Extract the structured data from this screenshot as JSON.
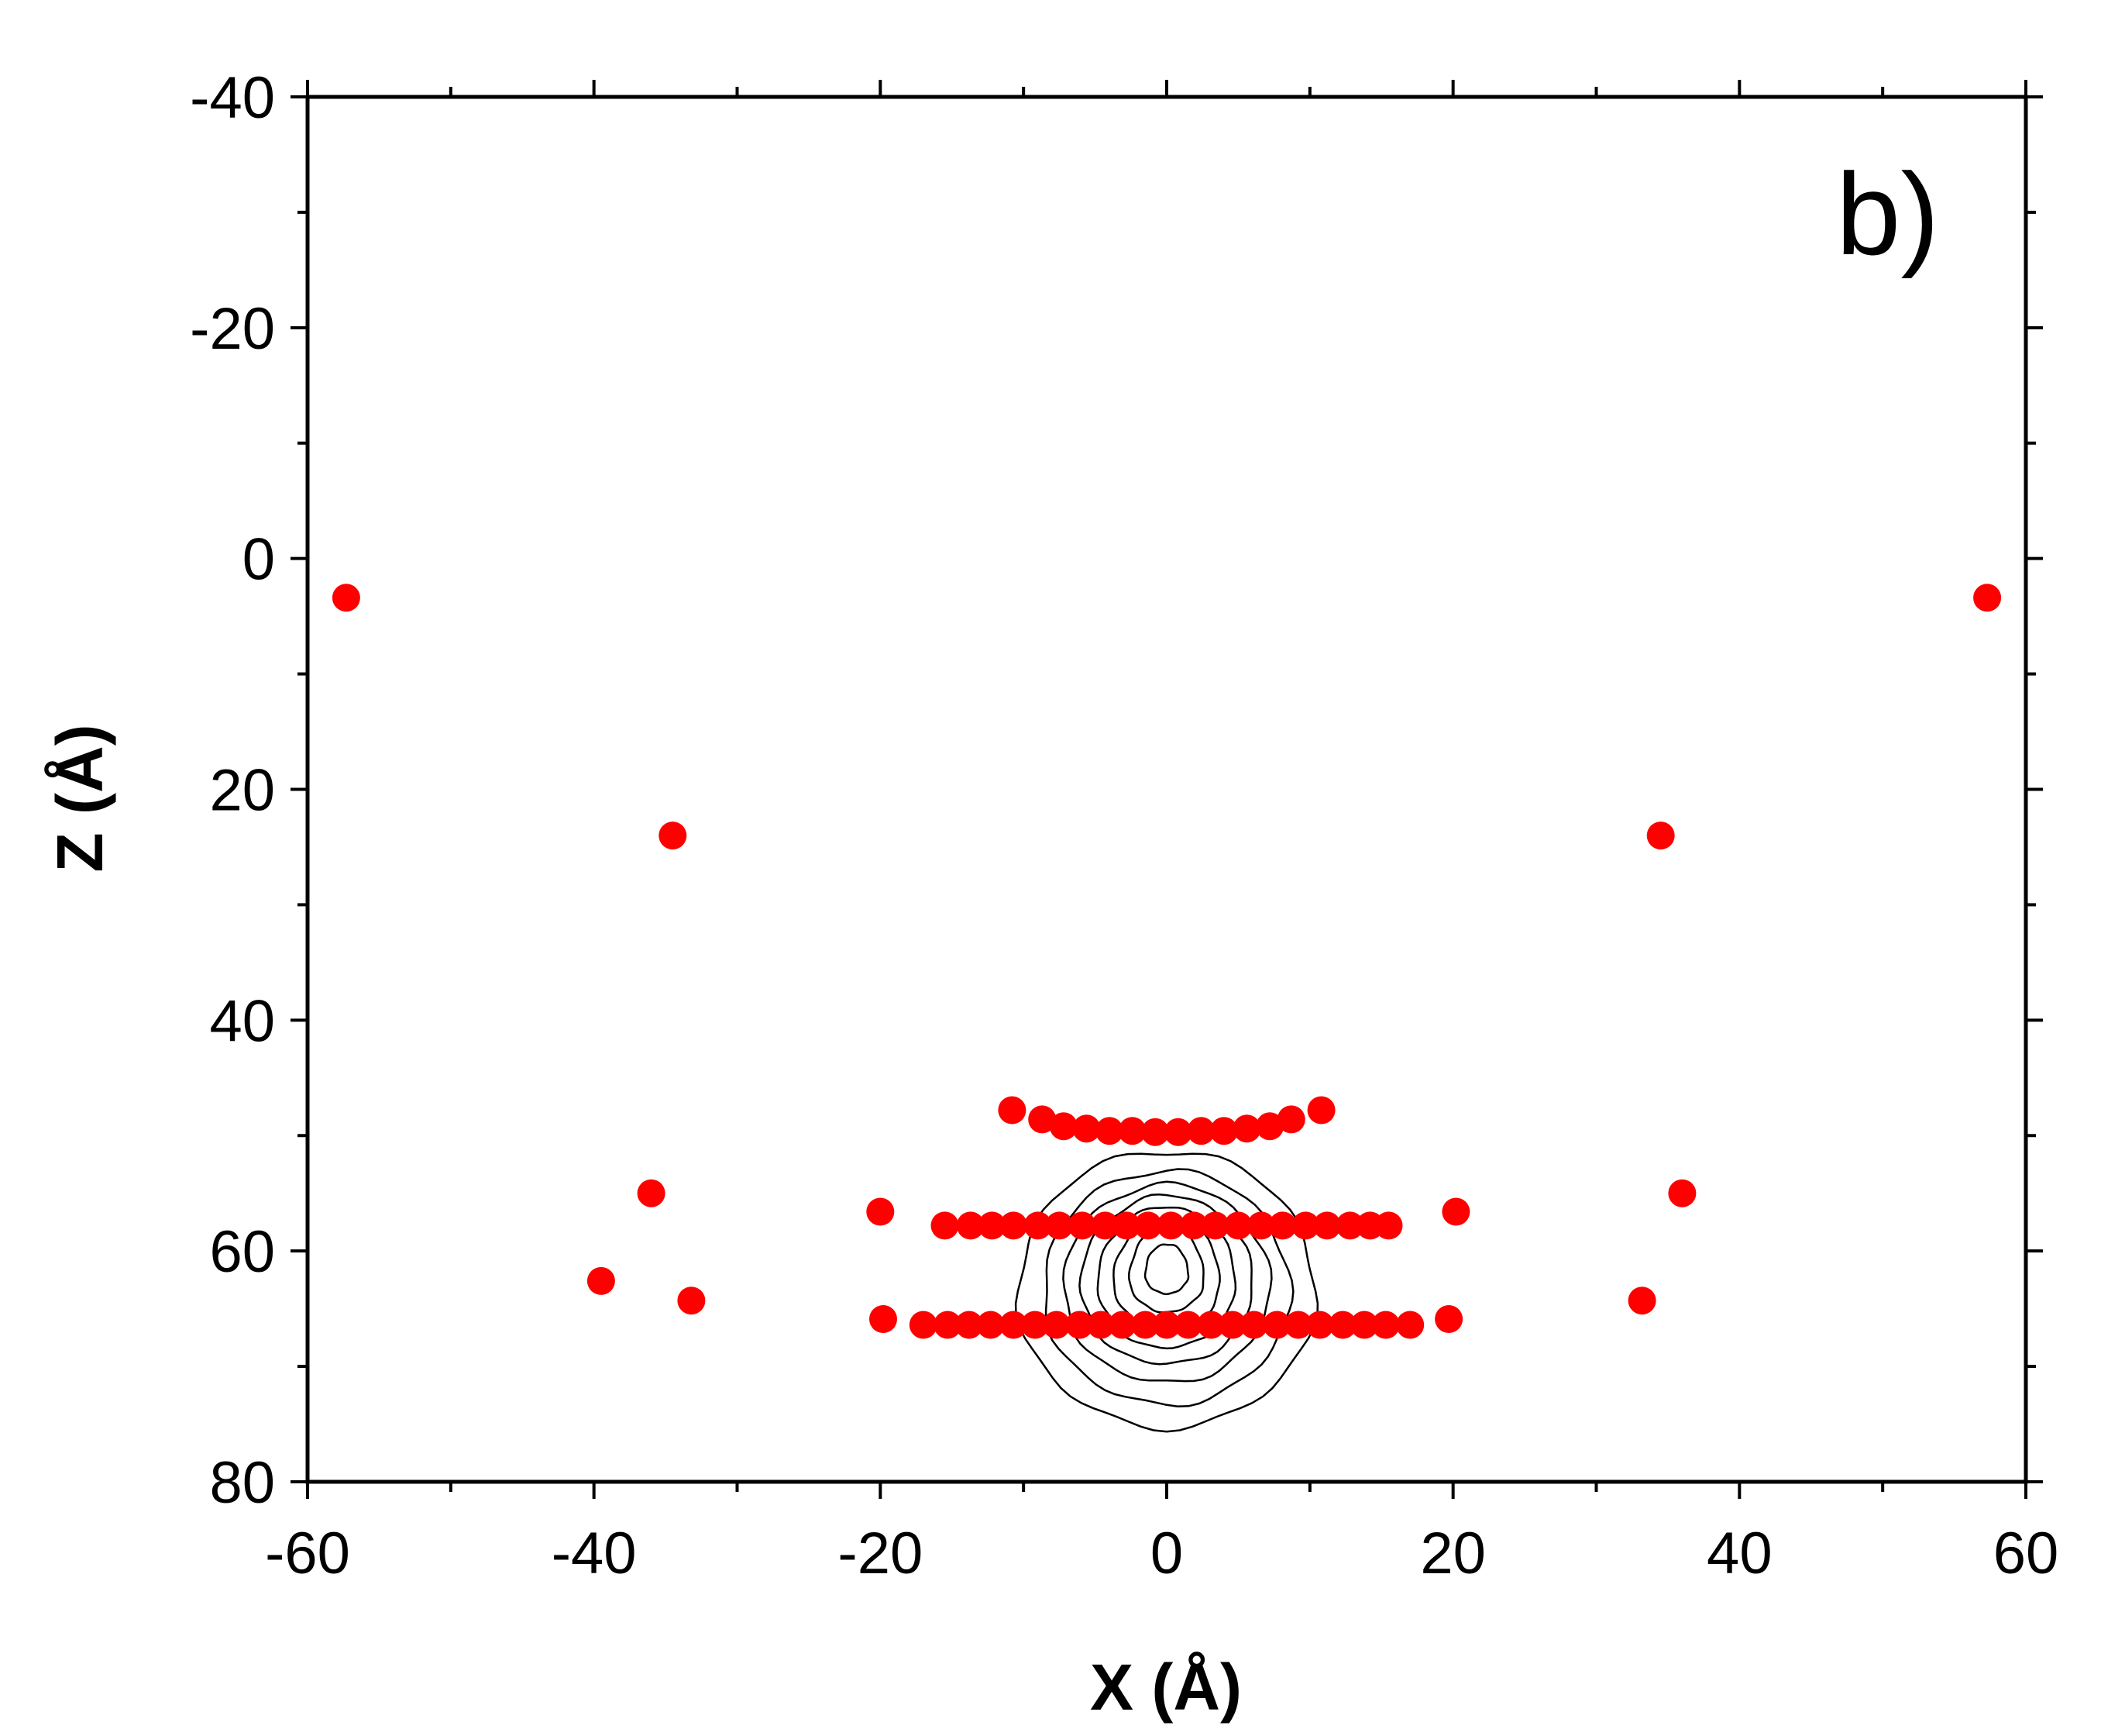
{
  "chart_data": {
    "type": "scatter",
    "panel_label": "b)",
    "xlabel": "X (Å)",
    "ylabel": "Z (Å)",
    "xlim": [
      -60,
      60
    ],
    "ylim": [
      -40,
      80
    ],
    "y_inverted": true,
    "x_ticks": [
      -60,
      -40,
      -20,
      0,
      20,
      40,
      60
    ],
    "y_ticks": [
      -40,
      -20,
      0,
      20,
      40,
      60,
      80
    ],
    "grid": false,
    "marker_color": "#ff0000",
    "contour_color": "#000000",
    "points": [
      {
        "x": -57.3,
        "y": 3.4
      },
      {
        "x": 57.3,
        "y": 3.4
      },
      {
        "x": -34.5,
        "y": 24.0
      },
      {
        "x": 34.5,
        "y": 24.0
      },
      {
        "x": -36.0,
        "y": 55.0
      },
      {
        "x": 36.0,
        "y": 55.0
      },
      {
        "x": -39.5,
        "y": 62.6
      },
      {
        "x": -33.2,
        "y": 64.3
      },
      {
        "x": 33.2,
        "y": 64.3
      },
      {
        "x": -20.0,
        "y": 56.6
      },
      {
        "x": 20.2,
        "y": 56.6
      },
      {
        "x": -19.8,
        "y": 65.9
      },
      {
        "x": 19.7,
        "y": 65.9
      },
      {
        "x": -10.8,
        "y": 47.8
      },
      {
        "x": -8.7,
        "y": 48.6
      },
      {
        "x": -7.2,
        "y": 49.2
      },
      {
        "x": -5.6,
        "y": 49.4
      },
      {
        "x": -4.0,
        "y": 49.6
      },
      {
        "x": -2.4,
        "y": 49.6
      },
      {
        "x": -0.8,
        "y": 49.7
      },
      {
        "x": 0.8,
        "y": 49.7
      },
      {
        "x": 2.4,
        "y": 49.6
      },
      {
        "x": 4.0,
        "y": 49.6
      },
      {
        "x": 5.6,
        "y": 49.4
      },
      {
        "x": 7.2,
        "y": 49.2
      },
      {
        "x": 8.7,
        "y": 48.6
      },
      {
        "x": 10.8,
        "y": 47.8
      },
      {
        "x": -15.5,
        "y": 57.8
      },
      {
        "x": -13.7,
        "y": 57.8
      },
      {
        "x": -12.2,
        "y": 57.8
      },
      {
        "x": -10.7,
        "y": 57.8
      },
      {
        "x": -9.0,
        "y": 57.8
      },
      {
        "x": -7.5,
        "y": 57.8
      },
      {
        "x": -5.9,
        "y": 57.8
      },
      {
        "x": -4.3,
        "y": 57.8
      },
      {
        "x": -2.8,
        "y": 57.8
      },
      {
        "x": -1.3,
        "y": 57.8
      },
      {
        "x": 0.3,
        "y": 57.8
      },
      {
        "x": 1.9,
        "y": 57.8
      },
      {
        "x": 3.4,
        "y": 57.8
      },
      {
        "x": 5.0,
        "y": 57.8
      },
      {
        "x": 6.6,
        "y": 57.8
      },
      {
        "x": 8.1,
        "y": 57.8
      },
      {
        "x": 9.7,
        "y": 57.8
      },
      {
        "x": 11.2,
        "y": 57.8
      },
      {
        "x": 12.8,
        "y": 57.8
      },
      {
        "x": 14.2,
        "y": 57.8
      },
      {
        "x": 15.5,
        "y": 57.8
      },
      {
        "x": -17.0,
        "y": 66.4
      },
      {
        "x": -15.3,
        "y": 66.4
      },
      {
        "x": -13.8,
        "y": 66.4
      },
      {
        "x": -12.3,
        "y": 66.4
      },
      {
        "x": -10.7,
        "y": 66.4
      },
      {
        "x": -9.2,
        "y": 66.4
      },
      {
        "x": -7.7,
        "y": 66.4
      },
      {
        "x": -6.1,
        "y": 66.4
      },
      {
        "x": -4.6,
        "y": 66.4
      },
      {
        "x": -3.1,
        "y": 66.4
      },
      {
        "x": -1.5,
        "y": 66.4
      },
      {
        "x": 0.0,
        "y": 66.4
      },
      {
        "x": 1.5,
        "y": 66.4
      },
      {
        "x": 3.1,
        "y": 66.4
      },
      {
        "x": 4.6,
        "y": 66.4
      },
      {
        "x": 6.1,
        "y": 66.4
      },
      {
        "x": 7.7,
        "y": 66.4
      },
      {
        "x": 9.2,
        "y": 66.4
      },
      {
        "x": 10.7,
        "y": 66.4
      },
      {
        "x": 12.3,
        "y": 66.4
      },
      {
        "x": 13.8,
        "y": 66.4
      },
      {
        "x": 15.3,
        "y": 66.4
      },
      {
        "x": 17.0,
        "y": 66.4
      }
    ],
    "contours": [
      {
        "cx": 0,
        "cz": 63.5,
        "rx": 10.4,
        "rz_top": 12.2,
        "rz_bottom": 11.8
      },
      {
        "cx": 0,
        "cz": 63.5,
        "rx": 8.6,
        "rz_top": 10.5,
        "rz_bottom": 9.8
      },
      {
        "cx": 0,
        "cz": 63.2,
        "rx": 7.2,
        "rz_top": 9.0,
        "rz_bottom": 8.2
      },
      {
        "cx": 0,
        "cz": 63.0,
        "rx": 6.0,
        "rz_top": 7.8,
        "rz_bottom": 6.8
      },
      {
        "cx": 0,
        "cz": 62.8,
        "rx": 4.8,
        "rz_top": 6.6,
        "rz_bottom": 5.6
      },
      {
        "cx": 0,
        "cz": 62.6,
        "rx": 3.7,
        "rz_top": 5.5,
        "rz_bottom": 4.3
      },
      {
        "cx": 0,
        "cz": 62.3,
        "rx": 2.6,
        "rz_top": 4.3,
        "rz_bottom": 3.0
      },
      {
        "cx": 0,
        "cz": 62.0,
        "rx": 1.5,
        "rz_top": 2.6,
        "rz_bottom": 1.7
      }
    ]
  }
}
